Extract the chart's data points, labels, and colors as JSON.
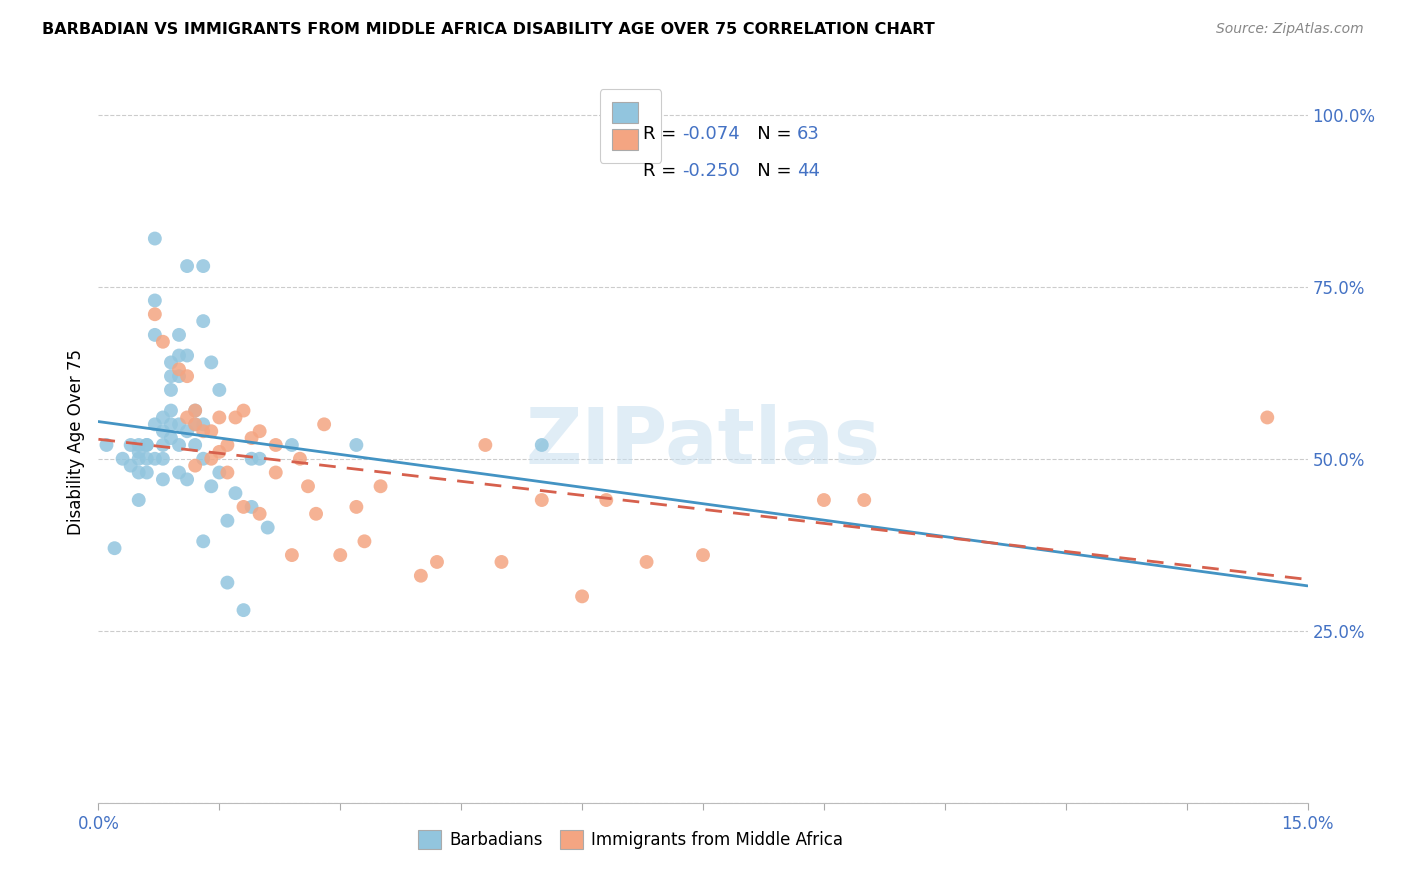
{
  "title": "BARBADIAN VS IMMIGRANTS FROM MIDDLE AFRICA DISABILITY AGE OVER 75 CORRELATION CHART",
  "source": "Source: ZipAtlas.com",
  "ylabel": "Disability Age Over 75",
  "xlim": [
    0.0,
    0.15
  ],
  "ylim": [
    0.0,
    1.05
  ],
  "blue_color": "#92c5de",
  "pink_color": "#f4a582",
  "blue_line_color": "#4393c3",
  "pink_line_color": "#d6604d",
  "watermark": "ZIPatlas",
  "blue_scatter_x": [
    0.001,
    0.002,
    0.003,
    0.004,
    0.004,
    0.005,
    0.005,
    0.005,
    0.005,
    0.005,
    0.006,
    0.006,
    0.006,
    0.006,
    0.007,
    0.007,
    0.007,
    0.007,
    0.007,
    0.008,
    0.008,
    0.008,
    0.008,
    0.008,
    0.009,
    0.009,
    0.009,
    0.009,
    0.009,
    0.009,
    0.01,
    0.01,
    0.01,
    0.01,
    0.01,
    0.01,
    0.011,
    0.011,
    0.011,
    0.011,
    0.012,
    0.012,
    0.012,
    0.013,
    0.013,
    0.013,
    0.013,
    0.013,
    0.014,
    0.014,
    0.015,
    0.015,
    0.016,
    0.016,
    0.017,
    0.018,
    0.019,
    0.019,
    0.02,
    0.021,
    0.024,
    0.032,
    0.055
  ],
  "blue_scatter_y": [
    0.52,
    0.37,
    0.5,
    0.49,
    0.52,
    0.5,
    0.51,
    0.52,
    0.48,
    0.44,
    0.52,
    0.5,
    0.52,
    0.48,
    0.82,
    0.73,
    0.68,
    0.55,
    0.5,
    0.56,
    0.54,
    0.52,
    0.5,
    0.47,
    0.64,
    0.62,
    0.6,
    0.57,
    0.55,
    0.53,
    0.68,
    0.65,
    0.62,
    0.55,
    0.52,
    0.48,
    0.78,
    0.65,
    0.54,
    0.47,
    0.57,
    0.55,
    0.52,
    0.78,
    0.7,
    0.55,
    0.5,
    0.38,
    0.64,
    0.46,
    0.6,
    0.48,
    0.41,
    0.32,
    0.45,
    0.28,
    0.5,
    0.43,
    0.5,
    0.4,
    0.52,
    0.52,
    0.52
  ],
  "pink_scatter_x": [
    0.007,
    0.008,
    0.01,
    0.011,
    0.011,
    0.012,
    0.012,
    0.012,
    0.013,
    0.014,
    0.014,
    0.015,
    0.015,
    0.016,
    0.016,
    0.017,
    0.018,
    0.018,
    0.019,
    0.02,
    0.02,
    0.022,
    0.022,
    0.024,
    0.025,
    0.026,
    0.027,
    0.028,
    0.03,
    0.032,
    0.033,
    0.035,
    0.04,
    0.042,
    0.048,
    0.05,
    0.055,
    0.06,
    0.063,
    0.068,
    0.075,
    0.09,
    0.095,
    0.145
  ],
  "pink_scatter_y": [
    0.71,
    0.67,
    0.63,
    0.62,
    0.56,
    0.57,
    0.55,
    0.49,
    0.54,
    0.54,
    0.5,
    0.56,
    0.51,
    0.52,
    0.48,
    0.56,
    0.57,
    0.43,
    0.53,
    0.54,
    0.42,
    0.52,
    0.48,
    0.36,
    0.5,
    0.46,
    0.42,
    0.55,
    0.36,
    0.43,
    0.38,
    0.46,
    0.33,
    0.35,
    0.52,
    0.35,
    0.44,
    0.3,
    0.44,
    0.35,
    0.36,
    0.44,
    0.44,
    0.56
  ]
}
